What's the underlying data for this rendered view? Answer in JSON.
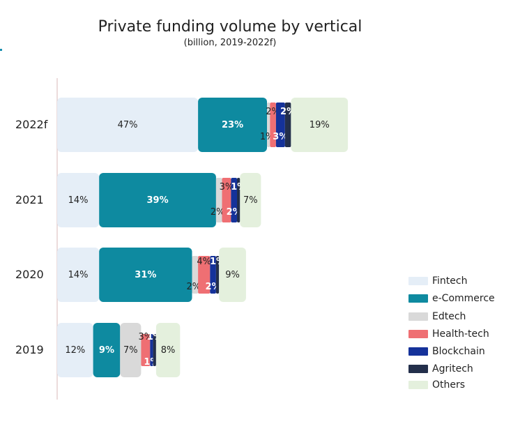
{
  "chart_data": {
    "type": "bar",
    "orientation": "horizontal",
    "stacked": true,
    "title": "Private funding volume by vertical",
    "subtitle": "(billion, 2019-2022f)",
    "categories": [
      "2022f",
      "2021",
      "2020",
      "2019"
    ],
    "series": [
      {
        "name": "Fintech",
        "color": "#e5eef7",
        "values": [
          47,
          14,
          14,
          12
        ],
        "labels": [
          "47%",
          "14%",
          "14%",
          "12%"
        ]
      },
      {
        "name": "e-Commerce",
        "color": "#0e8aa0",
        "values": [
          23,
          39,
          31,
          9
        ],
        "labels": [
          "23%",
          "39%",
          "31%",
          "9%"
        ]
      },
      {
        "name": "Edtech",
        "color": "#d9d9d9",
        "values": [
          1,
          2,
          2,
          7
        ],
        "labels": [
          "1%",
          "2%",
          "2%",
          "7%"
        ]
      },
      {
        "name": "Health-tech",
        "color": "#ef6f73",
        "values": [
          2,
          3,
          4,
          3
        ],
        "labels": [
          "2%",
          "3%",
          "4%",
          "3%"
        ]
      },
      {
        "name": "Blockchain",
        "color": "#15329a",
        "values": [
          3,
          2,
          2,
          1
        ],
        "labels": [
          "3%",
          "2%",
          "2%",
          "1%"
        ]
      },
      {
        "name": "Agritech",
        "color": "#232f4b",
        "values": [
          2,
          1,
          1,
          1
        ],
        "labels": [
          "2%",
          "1%",
          "1%",
          "1%"
        ]
      },
      {
        "name": "Others",
        "color": "#e4f0dd",
        "values": [
          19,
          7,
          9,
          8
        ],
        "labels": [
          "19%",
          "7%",
          "9%",
          "8%"
        ]
      }
    ],
    "legend_position": "right",
    "grid": false
  }
}
